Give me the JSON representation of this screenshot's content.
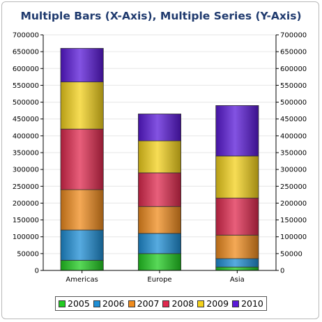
{
  "chart_data": {
    "type": "bar",
    "stacked": true,
    "title": "Multiple Bars (X-Axis), Multiple Series (Y-Axis)",
    "xlabel": "",
    "ylabel": "",
    "ylim": [
      0,
      700000
    ],
    "yticks": [
      "0",
      "50000",
      "100000",
      "150000",
      "200000",
      "250000",
      "300000",
      "350000",
      "400000",
      "450000",
      "500000",
      "550000",
      "600000",
      "650000",
      "700000"
    ],
    "categories": [
      "Americas",
      "Europe",
      "Asia"
    ],
    "series": [
      {
        "name": "2005",
        "color": "#22cc22",
        "values": [
          30000,
          50000,
          10000
        ]
      },
      {
        "name": "2006",
        "color": "#1f8fd6",
        "values": [
          90000,
          60000,
          25000
        ]
      },
      {
        "name": "2007",
        "color": "#f08c1e",
        "values": [
          120000,
          80000,
          70000
        ]
      },
      {
        "name": "2008",
        "color": "#e0294f",
        "values": [
          180000,
          100000,
          110000
        ]
      },
      {
        "name": "2009",
        "color": "#f4d21c",
        "values": [
          140000,
          95000,
          125000
        ]
      },
      {
        "name": "2010",
        "color": "#5a19d8",
        "values": [
          100000,
          80000,
          150000
        ]
      }
    ],
    "grid": true,
    "legend": "bottom"
  }
}
